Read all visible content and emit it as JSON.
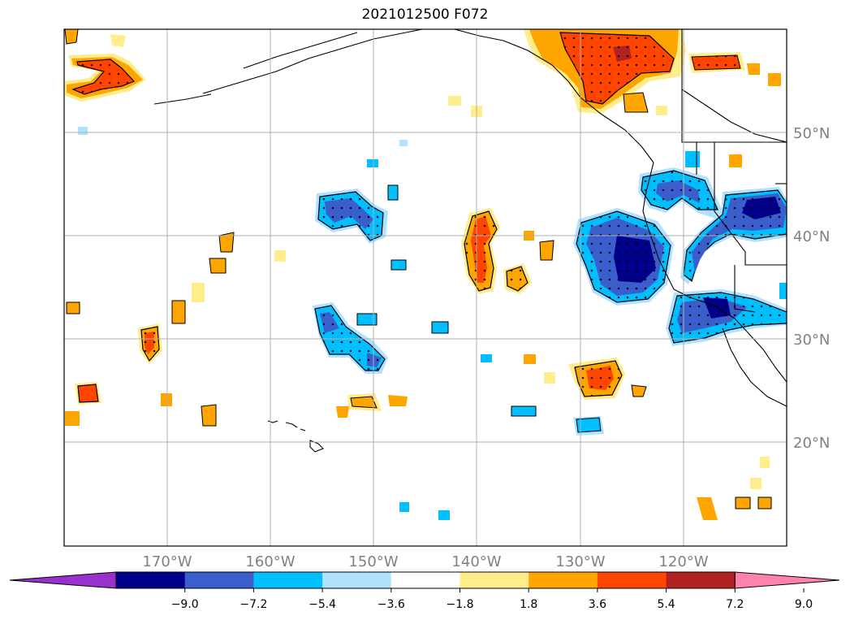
{
  "title": "2021012500 F072",
  "map": {
    "lat_labels": [
      "50°N",
      "40°N",
      "30°N",
      "20°N"
    ],
    "lon_labels": [
      "170°W",
      "160°W",
      "150°W",
      "140°W",
      "130°W",
      "120°W"
    ]
  },
  "colorbar": {
    "labels": [
      "−9.0",
      "−7.2",
      "−5.4",
      "−3.6",
      "−1.8",
      "1.8",
      "3.6",
      "5.4",
      "7.2",
      "9.0"
    ],
    "colors": [
      "#9932cc",
      "#00008b",
      "#3a5fcd",
      "#00bfff",
      "#b0e2ff",
      "#ffffff",
      "#ffec8b",
      "#ffa500",
      "#ff4500",
      "#b22222",
      "#ff82ab"
    ]
  },
  "colors": {
    "grid": "#b0b0b0",
    "coast": "#000000",
    "label": "#808080"
  }
}
